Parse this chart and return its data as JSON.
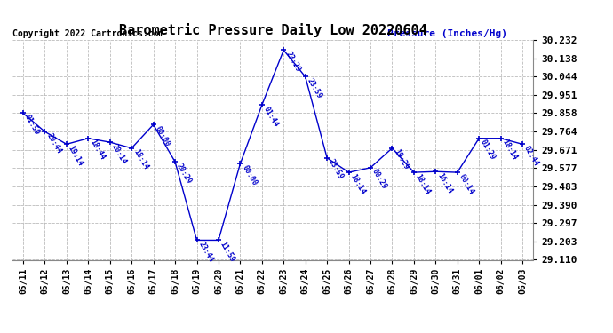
{
  "title": "Barometric Pressure Daily Low 20220604",
  "pressure_label": "Pressure (Inches/Hg)",
  "copyright": "Copyright 2022 Cartronics.com",
  "line_color": "#0000cc",
  "bg_color": "#ffffff",
  "grid_color": "#bbbbbb",
  "ylim": [
    29.11,
    30.232
  ],
  "yticks": [
    29.11,
    29.203,
    29.297,
    29.39,
    29.483,
    29.577,
    29.671,
    29.764,
    29.858,
    29.951,
    30.044,
    30.138,
    30.232
  ],
  "dates": [
    "05/11",
    "05/12",
    "05/13",
    "05/14",
    "05/15",
    "05/16",
    "05/17",
    "05/18",
    "05/19",
    "05/20",
    "05/21",
    "05/22",
    "05/23",
    "05/24",
    "05/25",
    "05/26",
    "05/27",
    "05/28",
    "05/29",
    "05/30",
    "05/31",
    "06/01",
    "06/02",
    "06/03"
  ],
  "x_indices": [
    0,
    1,
    2,
    3,
    4,
    5,
    6,
    7,
    8,
    9,
    10,
    11,
    12,
    13,
    14,
    15,
    16,
    17,
    18,
    19,
    20,
    21,
    22,
    23
  ],
  "values": [
    29.858,
    29.764,
    29.7,
    29.73,
    29.71,
    29.68,
    29.8,
    29.61,
    29.21,
    29.21,
    29.6,
    29.9,
    30.18,
    30.044,
    29.63,
    29.556,
    29.58,
    29.68,
    29.556,
    29.56,
    29.556,
    29.73,
    29.73,
    29.7
  ],
  "labels": [
    "01:59",
    "20:44",
    "19:14",
    "18:44",
    "20:14",
    "18:14",
    "00:00",
    "20:29",
    "23:44",
    "11:59",
    "00:00",
    "01:44",
    "23:29",
    "23:59",
    "23:59",
    "18:14",
    "00:29",
    "19:29",
    "18:14",
    "16:14",
    "00:14",
    "01:29",
    "18:14",
    "02:44"
  ]
}
